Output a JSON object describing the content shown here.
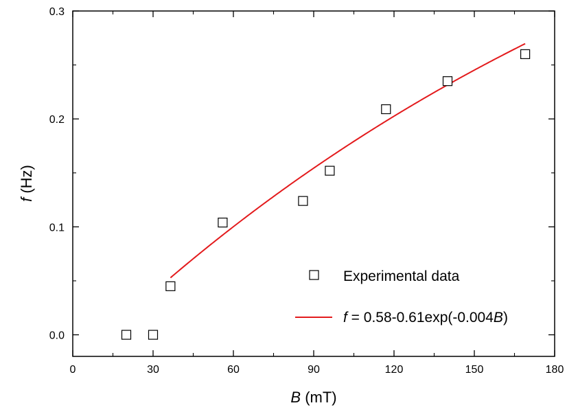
{
  "chart_data": {
    "type": "scatter",
    "xlabel": {
      "var": "B",
      "unit": " (mT)"
    },
    "ylabel": {
      "var": "f",
      "unit": " (Hz)"
    },
    "xlim": [
      0,
      180
    ],
    "ylim": [
      -0.02,
      0.3
    ],
    "x_ticks": [
      0,
      30,
      60,
      90,
      120,
      150,
      180
    ],
    "x_tick_labels": [
      "0",
      "30",
      "60",
      "90",
      "120",
      "150",
      "180"
    ],
    "y_ticks": [
      0.0,
      0.1,
      0.2,
      0.3
    ],
    "y_tick_labels": [
      "0.0",
      "0.1",
      "0.2",
      "0.3"
    ],
    "grid": false,
    "legend_position": "bottom-right",
    "series": [
      {
        "name": "Experimental data",
        "kind": "scatter",
        "marker": "open-square",
        "color": "#000000",
        "x": [
          20,
          30,
          36.5,
          56,
          86,
          96,
          117,
          140,
          169
        ],
        "y": [
          0.0,
          0.0,
          0.045,
          0.104,
          0.124,
          0.152,
          0.209,
          0.235,
          0.26
        ]
      },
      {
        "name": "f = 0.58-0.61exp(-0.004B)",
        "name_parts": [
          "f",
          " = 0.58-0.61exp(-0.004",
          "B",
          ")"
        ],
        "kind": "line",
        "color": "#e31a1c",
        "fit": {
          "a": 0.58,
          "b": 0.61,
          "k": 0.004
        },
        "x_range": [
          36.5,
          169
        ]
      }
    ]
  }
}
